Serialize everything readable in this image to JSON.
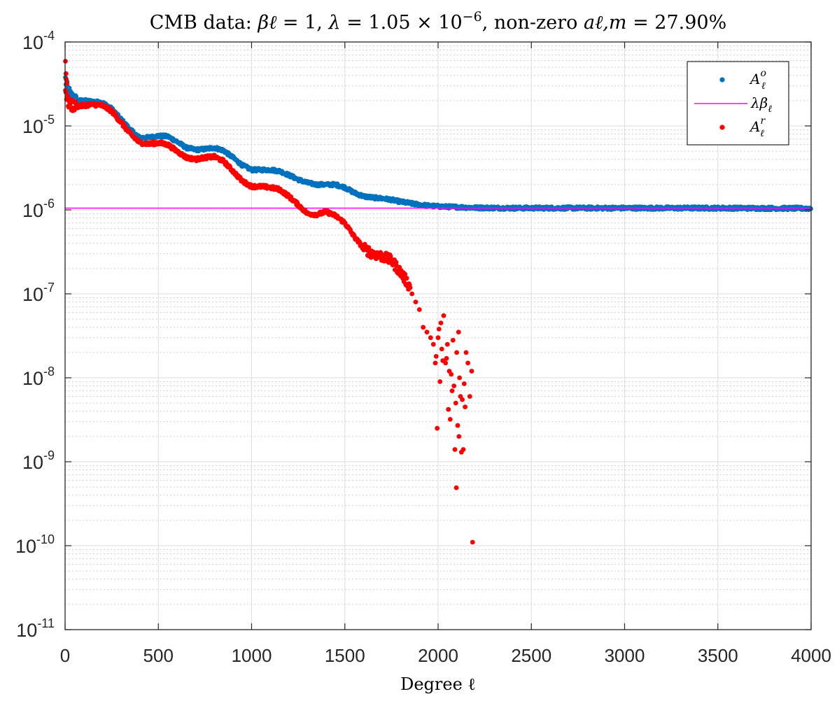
{
  "chart_data": {
    "type": "scatter",
    "title": "CMB data: βℓ = 1, λ = 1.05 × 10⁻⁶, non-zero aℓ,m = 27.90%",
    "title_parts": {
      "prefix": "CMB data: ",
      "beta": "βℓ",
      "beta_eq": " = 1, ",
      "lambda": "λ",
      "lambda_eq": " = 1.05 × 10",
      "lambda_exp": "−6",
      "mid": ", non-zero ",
      "alm": "aℓ,m",
      "alm_eq": " = 27.90%"
    },
    "xlabel": "Degree ℓ",
    "ylabel": "",
    "xlim": [
      0,
      4000
    ],
    "ylim_log10": [
      -11,
      -4
    ],
    "yscale": "log",
    "grid": true,
    "minor_grid": true,
    "legend_position": "top-right",
    "x_ticks": [
      0,
      500,
      1000,
      1500,
      2000,
      2500,
      3000,
      3500,
      4000
    ],
    "y_ticks": [
      {
        "base": "10",
        "exp": "-4"
      },
      {
        "base": "10",
        "exp": "-5"
      },
      {
        "base": "10",
        "exp": "-6"
      },
      {
        "base": "10",
        "exp": "-7"
      },
      {
        "base": "10",
        "exp": "-8"
      },
      {
        "base": "10",
        "exp": "-9"
      },
      {
        "base": "10",
        "exp": "-10"
      },
      {
        "base": "10",
        "exp": "-11"
      }
    ],
    "series": [
      {
        "name": "Aℓ^o",
        "label_main": "A",
        "label_sub": "ℓ",
        "label_sup": "o",
        "style": "markers",
        "color": "#0072BD",
        "profile_note": "dense markers for every degree 1..4000 following this curve",
        "x": [
          2,
          10,
          30,
          60,
          100,
          150,
          200,
          250,
          300,
          350,
          400,
          450,
          500,
          550,
          600,
          650,
          700,
          750,
          800,
          850,
          900,
          950,
          1000,
          1050,
          1100,
          1150,
          1200,
          1250,
          1300,
          1350,
          1400,
          1450,
          1500,
          1550,
          1600,
          1650,
          1700,
          1750,
          1800,
          1850,
          1900,
          1950,
          2000,
          2050,
          2100,
          2150,
          2200,
          2300,
          2400,
          2600,
          3000,
          3500,
          4000
        ],
        "y": [
          3.6e-05,
          2.9e-05,
          2.3e-05,
          2e-05,
          2e-05,
          1.95e-05,
          1.9e-05,
          1.6e-05,
          1.2e-05,
          9e-06,
          7.2e-06,
          7.3e-06,
          7.6e-06,
          7.5e-06,
          6.5e-06,
          5.5e-06,
          5.2e-06,
          5.3e-06,
          5.5e-06,
          5.1e-06,
          4.2e-06,
          3.4e-06,
          3e-06,
          3e-06,
          3e-06,
          2.9e-06,
          2.6e-06,
          2.3e-06,
          2.1e-06,
          2e-06,
          2e-06,
          2e-06,
          1.85e-06,
          1.6e-06,
          1.45e-06,
          1.4e-06,
          1.37e-06,
          1.32e-06,
          1.25e-06,
          1.2e-06,
          1.15e-06,
          1.12e-06,
          1.1e-06,
          1.09e-06,
          1.08e-06,
          1.07e-06,
          1.06e-06,
          1.055e-06,
          1.05e-06,
          1.05e-06,
          1.05e-06,
          1.05e-06,
          1.04e-06
        ]
      },
      {
        "name": "λβℓ",
        "label_main": "λβ",
        "label_sub": "ℓ",
        "label_sup": "",
        "style": "line",
        "color": "#FF00FF",
        "x": [
          0,
          4000
        ],
        "y": [
          1.05e-06,
          1.05e-06
        ]
      },
      {
        "name": "Aℓ^r",
        "label_main": "A",
        "label_sub": "ℓ",
        "label_sup": "r",
        "style": "markers",
        "color": "#FF0000",
        "profile_note": "dense markers up to degree 1850, sparse scattered points above",
        "x": [
          2,
          10,
          30,
          60,
          100,
          150,
          200,
          250,
          300,
          350,
          400,
          450,
          500,
          550,
          600,
          650,
          700,
          750,
          800,
          850,
          900,
          950,
          1000,
          1050,
          1100,
          1150,
          1200,
          1250,
          1300,
          1350,
          1400,
          1450,
          1500,
          1550,
          1600,
          1650,
          1700,
          1750,
          1800,
          1850
        ],
        "y": [
          3e-05,
          2e-05,
          1.75e-05,
          1.7e-05,
          1.75e-05,
          1.8e-05,
          1.75e-05,
          1.5e-05,
          1.1e-05,
          8e-06,
          6.3e-06,
          6.1e-06,
          6.3e-06,
          6e-06,
          5e-06,
          4.2e-06,
          4e-06,
          4.2e-06,
          4.3e-06,
          3.8e-06,
          2.9e-06,
          2.2e-06,
          1.9e-06,
          1.9e-06,
          1.85e-06,
          1.75e-06,
          1.45e-06,
          1.15e-06,
          9e-07,
          8.8e-07,
          9.5e-07,
          8.5e-07,
          7e-07,
          4.8e-07,
          3.5e-07,
          3e-07,
          2.8e-07,
          2.5e-07,
          1.8e-07,
          1.2e-07
        ],
        "outliers_x": [
          2,
          5,
          6,
          10,
          1860,
          1880,
          1900,
          1920,
          1940,
          1960,
          1975,
          1990,
          2000,
          2005,
          2015,
          2020,
          2030,
          2040,
          2050,
          2060,
          2070,
          2080,
          2085,
          2090,
          2095,
          2100,
          2105,
          2110,
          2115,
          2120,
          2125,
          2130,
          2140,
          2150,
          2160,
          2170,
          2180,
          2185,
          1995,
          2025,
          2055,
          2075,
          2098,
          2112,
          2135,
          2145,
          1985,
          2010,
          2045,
          2065
        ],
        "outliers_y": [
          5.9e-05,
          4.2e-05,
          3.6e-05,
          3.2e-05,
          1e-07,
          8e-08,
          6.5e-08,
          4e-08,
          3.5e-08,
          3e-08,
          2.5e-08,
          1.8e-08,
          3e-08,
          3.8e-08,
          4.5e-08,
          2.2e-08,
          5.5e-08,
          1.5e-08,
          2.5e-08,
          1.2e-08,
          1.1e-08,
          2.8e-08,
          8e-09,
          1.4e-09,
          5e-09,
          2e-08,
          2.7e-09,
          3.5e-08,
          1e-08,
          6e-09,
          1.3e-09,
          5.5e-09,
          8.5e-09,
          2e-08,
          1.5e-08,
          6e-09,
          1.2e-08,
          1.1e-10,
          2.5e-09,
          1.6e-08,
          4.2e-09,
          7e-09,
          4.9e-10,
          2e-09,
          1.4e-09,
          4.5e-09,
          1.5e-08,
          9e-09,
          1.7e-08,
          3.2e-09
        ]
      }
    ]
  }
}
